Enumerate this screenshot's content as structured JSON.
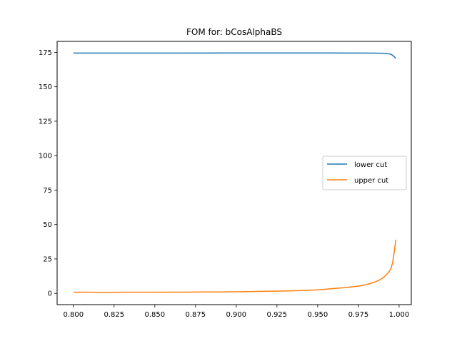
{
  "chart_data": {
    "type": "line",
    "title": "FOM for: bCosAlphaBS",
    "xlabel": "",
    "ylabel": "",
    "xlim": [
      0.79,
      1.0075
    ],
    "ylim": [
      -8.2,
      183.0
    ],
    "xticks": [
      "0.800",
      "0.825",
      "0.850",
      "0.875",
      "0.900",
      "0.925",
      "0.950",
      "0.975",
      "1.000"
    ],
    "yticks": [
      "0",
      "25",
      "50",
      "75",
      "100",
      "125",
      "150",
      "175"
    ],
    "grid": false,
    "legend_position": "center-right",
    "series": [
      {
        "name": "lower cut",
        "color": "#1f77b4",
        "x": [
          0.8,
          0.85,
          0.9,
          0.95,
          0.98,
          0.99,
          0.993,
          0.995,
          0.996,
          0.997,
          0.998
        ],
        "y": [
          174.5,
          174.5,
          174.6,
          174.6,
          174.5,
          174.4,
          174.1,
          173.6,
          172.9,
          171.9,
          170.6
        ]
      },
      {
        "name": "upper cut",
        "color": "#ff7f0e",
        "x": [
          0.8,
          0.81,
          0.82,
          0.83,
          0.84,
          0.85,
          0.86,
          0.87,
          0.88,
          0.89,
          0.9,
          0.91,
          0.92,
          0.93,
          0.94,
          0.95,
          0.955,
          0.96,
          0.965,
          0.97,
          0.975,
          0.98,
          0.983,
          0.986,
          0.988,
          0.99,
          0.992,
          0.994,
          0.995,
          0.996,
          0.997,
          0.998
        ],
        "y": [
          0.8,
          0.8,
          0.7,
          0.8,
          0.8,
          0.8,
          0.9,
          0.9,
          1.0,
          1.0,
          1.1,
          1.3,
          1.5,
          1.7,
          2.0,
          2.5,
          3.0,
          3.5,
          4.0,
          4.6,
          5.2,
          6.3,
          7.4,
          8.6,
          9.7,
          11.2,
          13.3,
          16.0,
          18.0,
          22.0,
          30.0,
          39.0
        ]
      }
    ]
  }
}
